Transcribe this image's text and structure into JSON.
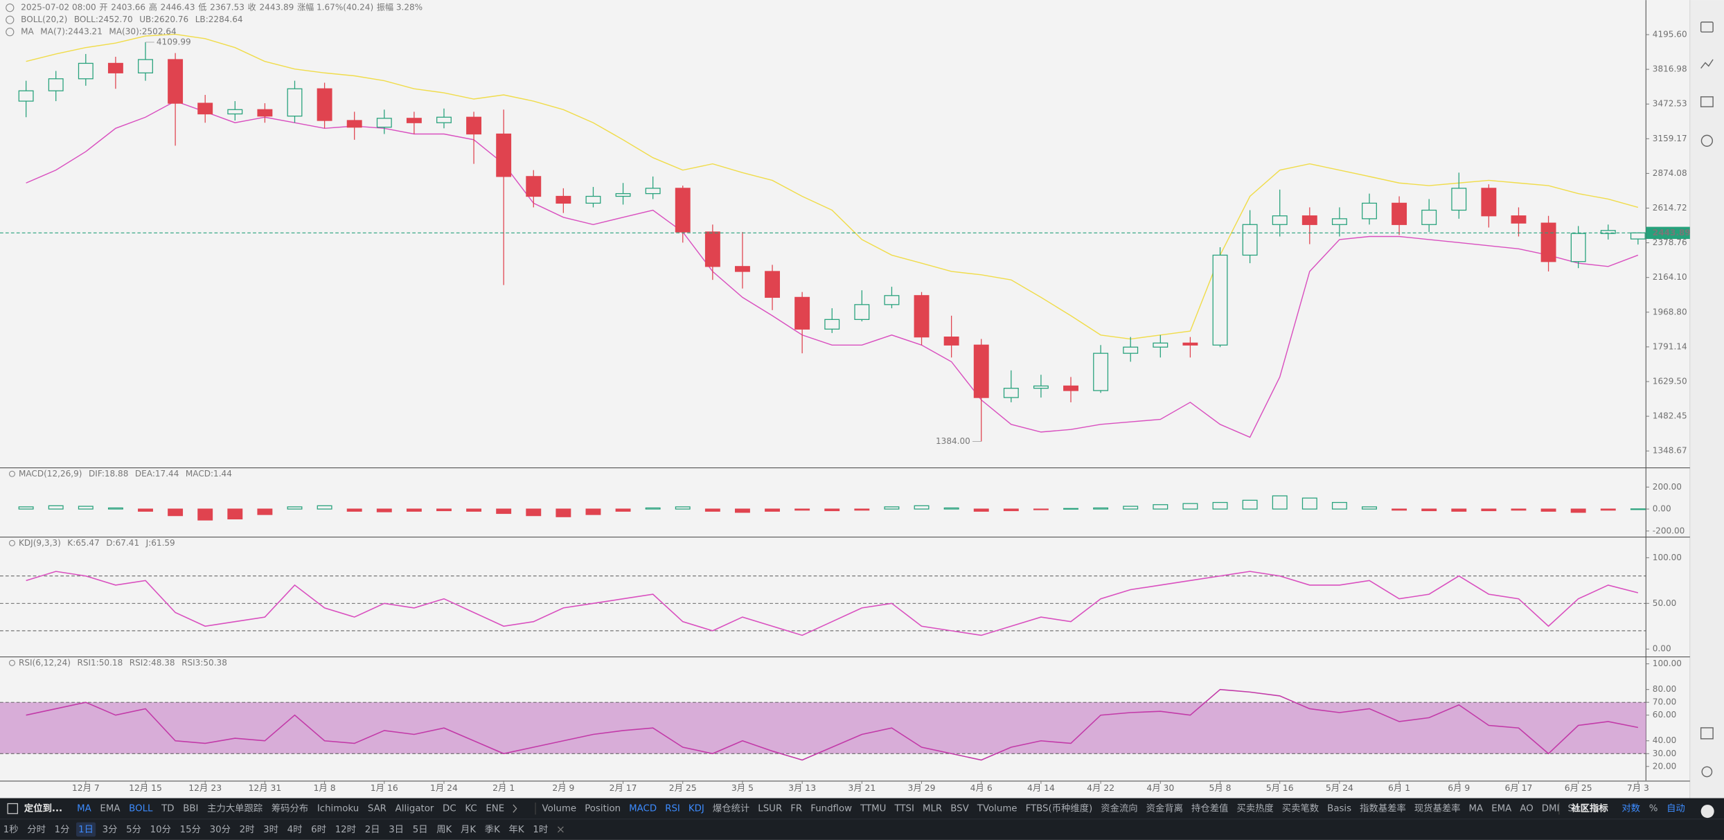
{
  "header": {
    "datetime": "2025-07-02 08:00",
    "open_label": "开",
    "high_label": "高",
    "low_label": "低",
    "close_label": "收",
    "change": "涨幅 1.67%(40.24)",
    "amplitude": "振幅 3.28%"
  },
  "overlay_legends": [
    {
      "title": "BOLL(20,2)",
      "items": [
        {
          "text": "BOLL:2452.70",
          "color": "#b8b8b8"
        },
        {
          "text": "UB:2620.76",
          "color": "#e6c700"
        },
        {
          "text": "LB:2284.64",
          "color": "#d94fbf"
        }
      ]
    },
    {
      "title": "MA",
      "items": [
        {
          "text": "MA(7):2443.21",
          "color": "#b8b8b8"
        },
        {
          "text": "MA(30):2502.64",
          "color": "#e6c700"
        }
      ]
    }
  ],
  "chart_data": [
    {
      "type": "candlestick",
      "log_scale": true,
      "ylim": [
        1290,
        4610
      ],
      "yticks": [
        {
          "value": 4195.6,
          "label": "4195.60"
        },
        3816.98,
        3472.53,
        3159.17,
        2874.08,
        2614.72,
        2378.76,
        {
          "value": 2164.1,
          "label": "2164.10"
        },
        {
          "value": 1968.8,
          "label": "1968.80"
        },
        1791.14,
        {
          "value": 1629.5,
          "label": "1629.50"
        },
        1482.45,
        1348.67
      ],
      "x_labels": [
        "12月 7",
        "12月 15",
        "12月 23",
        "12月 31",
        "1月 8",
        "1月 16",
        "1月 24",
        "2月 1",
        "2月 9",
        "2月 17",
        "2月 25",
        "3月 5",
        "3月 13",
        "3月 21",
        "3月 29",
        "4月 6",
        "4月 14",
        "4月 22",
        "4月 30",
        "5月 8",
        "5月 16",
        "5月 24",
        "6月 1",
        "6月 9",
        "6月 17",
        "6月 25",
        "7月 3"
      ],
      "up_color": "#26a17b",
      "down_color": "#e0434f",
      "open": [
        3500,
        3600,
        3720,
        3880,
        3780,
        3920,
        3480,
        3380,
        3420,
        3360,
        3620,
        3320,
        3260,
        3340,
        3300,
        3350,
        3200,
        2850,
        2700,
        2650,
        2700,
        2720,
        2760,
        2450,
        2230,
        2200,
        2050,
        1880,
        1930,
        2010,
        2060,
        1840,
        1800,
        1560,
        1600,
        1610,
        1590,
        1760,
        1790,
        1810,
        1800,
        2300,
        2500,
        2560,
        2500,
        2540,
        2650,
        2500,
        2600,
        2760,
        2560,
        2510,
        2260,
        2440,
        2403.66
      ],
      "high": [
        3700,
        3800,
        3980,
        3950,
        4109.99,
        3990,
        3560,
        3500,
        3480,
        3700,
        3680,
        3400,
        3420,
        3400,
        3430,
        3400,
        3420,
        2900,
        2760,
        2770,
        2800,
        2850,
        2780,
        2500,
        2450,
        2240,
        2080,
        1990,
        2090,
        2110,
        2080,
        1950,
        1830,
        1680,
        1660,
        1650,
        1800,
        1840,
        1850,
        1840,
        2350,
        2600,
        2750,
        2620,
        2620,
        2720,
        2700,
        2680,
        2880,
        2790,
        2620,
        2560,
        2490,
        2500,
        2446.43
      ],
      "low": [
        3350,
        3500,
        3650,
        3620,
        3700,
        3100,
        3300,
        3320,
        3300,
        3300,
        3250,
        3150,
        3200,
        3200,
        3250,
        2950,
        2120,
        2620,
        2580,
        2620,
        2640,
        2680,
        2380,
        2150,
        2100,
        1980,
        1760,
        1860,
        1920,
        1990,
        1800,
        1740,
        1384,
        1540,
        1560,
        1540,
        1580,
        1720,
        1740,
        1740,
        1790,
        2250,
        2420,
        2370,
        2420,
        2500,
        2430,
        2450,
        2540,
        2480,
        2420,
        2200,
        2220,
        2400,
        2367.53
      ],
      "close": [
        3600,
        3720,
        3880,
        3780,
        3920,
        3480,
        3380,
        3420,
        3360,
        3620,
        3320,
        3260,
        3340,
        3300,
        3350,
        3200,
        2850,
        2700,
        2650,
        2700,
        2720,
        2760,
        2450,
        2230,
        2200,
        2050,
        1880,
        1930,
        2010,
        2060,
        1840,
        1800,
        1560,
        1600,
        1610,
        1590,
        1760,
        1790,
        1810,
        1800,
        2300,
        2500,
        2560,
        2500,
        2540,
        2650,
        2500,
        2600,
        2760,
        2560,
        2510,
        2260,
        2440,
        2460,
        2443.89
      ],
      "high_label": "4109.99",
      "low_label": "1384.00",
      "boll_upper": {
        "color": "#f0dc4a",
        "values": [
          3900,
          3980,
          4050,
          4100,
          4180,
          4200,
          4150,
          4050,
          3900,
          3820,
          3780,
          3750,
          3700,
          3620,
          3580,
          3520,
          3560,
          3500,
          3420,
          3300,
          3150,
          3000,
          2900,
          2950,
          2880,
          2820,
          2700,
          2600,
          2400,
          2300,
          2250,
          2200,
          2180,
          2150,
          2050,
          1950,
          1850,
          1830,
          1850,
          1870,
          2300,
          2700,
          2900,
          2950,
          2900,
          2850,
          2800,
          2780,
          2800,
          2820,
          2800,
          2780,
          2720,
          2680,
          2620
        ]
      },
      "boll_lower": {
        "color": "#d94fbf",
        "values": [
          2800,
          2900,
          3050,
          3250,
          3350,
          3500,
          3400,
          3300,
          3350,
          3300,
          3250,
          3270,
          3250,
          3200,
          3200,
          3150,
          2950,
          2650,
          2550,
          2500,
          2550,
          2600,
          2450,
          2200,
          2050,
          1950,
          1850,
          1800,
          1800,
          1850,
          1800,
          1720,
          1550,
          1450,
          1420,
          1430,
          1450,
          1460,
          1470,
          1540,
          1450,
          1400,
          1650,
          2200,
          2400,
          2420,
          2420,
          2400,
          2380,
          2360,
          2340,
          2300,
          2250,
          2230,
          2300
        ]
      }
    },
    {
      "type": "bar",
      "title": "MACD(12,26,9)",
      "legend": [
        {
          "text": "DIF:18.88",
          "color": "#b8b8b8"
        },
        {
          "text": "DEA:17.44",
          "color": "#e6c700"
        },
        {
          "text": "MACD:1.44",
          "color": "#26a17b"
        }
      ],
      "ylim": [
        -250,
        370
      ],
      "yticks": [
        {
          "value": 200,
          "label": "200.00"
        },
        {
          "value": 0,
          "label": "0.00"
        },
        {
          "value": -200,
          "label": "-200.00"
        }
      ],
      "up_color": "#26a17b",
      "down_color": "#e0434f",
      "values": [
        20,
        30,
        25,
        10,
        -20,
        -60,
        -100,
        -90,
        -50,
        20,
        30,
        -20,
        -25,
        -20,
        -15,
        -20,
        -40,
        -60,
        -70,
        -50,
        -20,
        10,
        20,
        -20,
        -30,
        -20,
        -10,
        -15,
        -10,
        20,
        30,
        10,
        -20,
        -15,
        -5,
        5,
        10,
        25,
        40,
        50,
        60,
        80,
        120,
        100,
        60,
        20,
        -10,
        -15,
        -20,
        -15,
        -10,
        -20,
        -30,
        -10,
        1.44
      ]
    },
    {
      "type": "line",
      "title": "KDJ(9,3,3)",
      "legend": [
        {
          "text": "K:65.47",
          "color": "#b8b8b8"
        },
        {
          "text": "D:67.41",
          "color": "#e6c700"
        },
        {
          "text": "J:61.59",
          "color": "#d94fbf"
        }
      ],
      "ylim": [
        -8,
        122
      ],
      "yticks": [
        {
          "value": 100,
          "label": "100.00"
        },
        {
          "value": 50,
          "label": "50.00"
        },
        {
          "value": 0,
          "label": "0.00"
        }
      ],
      "levels": [
        80,
        50,
        20
      ],
      "color": "#d94fbf",
      "values": [
        75,
        85,
        80,
        70,
        75,
        40,
        25,
        30,
        35,
        70,
        45,
        35,
        50,
        45,
        55,
        40,
        25,
        30,
        45,
        50,
        55,
        60,
        30,
        20,
        35,
        25,
        15,
        30,
        45,
        50,
        25,
        20,
        15,
        25,
        35,
        30,
        55,
        65,
        70,
        75,
        80,
        85,
        80,
        70,
        70,
        75,
        55,
        60,
        80,
        60,
        55,
        25,
        55,
        70,
        61.59
      ]
    },
    {
      "type": "line",
      "title": "RSI(6,12,24)",
      "legend": [
        {
          "text": "RSI1:50.18",
          "color": "#b8b8b8"
        },
        {
          "text": "RSI2:48.38",
          "color": "#e6c700"
        },
        {
          "text": "RSI3:50.38",
          "color": "#d94fbf"
        }
      ],
      "ylim": [
        9,
        105
      ],
      "yticks": [
        {
          "value": 100,
          "label": "100.00"
        },
        {
          "value": 80,
          "label": "80.00"
        },
        {
          "value": 70,
          "label": "70.00"
        },
        {
          "value": 60,
          "label": "60.00"
        },
        {
          "value": 40,
          "label": "40.00"
        },
        {
          "value": 30,
          "label": "30.00"
        },
        {
          "value": 20,
          "label": "20.00"
        }
      ],
      "band": [
        30,
        70
      ],
      "band_color": "#cf95cf",
      "color": "#c23aa8",
      "values": [
        60,
        65,
        70,
        60,
        65,
        40,
        38,
        42,
        40,
        60,
        40,
        38,
        48,
        45,
        50,
        40,
        30,
        35,
        40,
        45,
        48,
        50,
        35,
        30,
        40,
        32,
        25,
        35,
        45,
        50,
        35,
        30,
        25,
        35,
        40,
        38,
        60,
        62,
        63,
        60,
        80,
        78,
        75,
        65,
        62,
        65,
        55,
        58,
        68,
        52,
        50,
        30,
        52,
        55,
        50.38
      ]
    }
  ],
  "toolbar": {
    "locate": "定位到...",
    "main_indicators": [
      {
        "text": "MA",
        "active": true
      },
      {
        "text": "EMA",
        "active": false
      },
      {
        "text": "BOLL",
        "active": true
      },
      {
        "text": "TD",
        "active": false
      },
      {
        "text": "BBI",
        "active": false
      },
      {
        "text": "主力大单跟踪",
        "active": false
      },
      {
        "text": "筹码分布",
        "active": false
      },
      {
        "text": "Ichimoku",
        "active": false
      },
      {
        "text": "SAR",
        "active": false
      },
      {
        "text": "Alligator",
        "active": false
      },
      {
        "text": "DC",
        "active": false
      },
      {
        "text": "KC",
        "active": false
      },
      {
        "text": "ENE",
        "active": false
      }
    ],
    "sub_indicators": [
      {
        "text": "Volume",
        "active": false
      },
      {
        "text": "Position",
        "active": false
      },
      {
        "text": "MACD",
        "active": true
      },
      {
        "text": "RSI",
        "active": true
      },
      {
        "text": "KDJ",
        "active": true
      },
      {
        "text": "爆仓统计",
        "active": false
      },
      {
        "text": "LSUR",
        "active": false
      },
      {
        "text": "FR",
        "active": false
      },
      {
        "text": "Fundflow",
        "active": false
      },
      {
        "text": "TTMU",
        "active": false
      },
      {
        "text": "TTSI",
        "active": false
      },
      {
        "text": "MLR",
        "active": false
      },
      {
        "text": "BSV",
        "active": false
      },
      {
        "text": "TVolume",
        "active": false
      },
      {
        "text": "FTBS(币种维度)",
        "active": false
      },
      {
        "text": "资金流向",
        "active": false
      },
      {
        "text": "资金背离",
        "active": false
      },
      {
        "text": "持仓差值",
        "active": false
      },
      {
        "text": "买卖热度",
        "active": false
      },
      {
        "text": "买卖笔数",
        "active": false
      },
      {
        "text": "Basis",
        "active": false
      },
      {
        "text": "指数基差率",
        "active": false
      },
      {
        "text": "现货基差率",
        "active": false
      },
      {
        "text": "MA",
        "active": false
      },
      {
        "text": "EMA",
        "active": false
      },
      {
        "text": "AO",
        "active": false
      },
      {
        "text": "DMI",
        "active": false
      },
      {
        "text": "SAR",
        "active": false
      }
    ],
    "community": "社区指标",
    "options": [
      {
        "text": "对数",
        "active": true
      },
      {
        "text": "%",
        "active": false
      },
      {
        "text": "自动",
        "active": true
      }
    ],
    "timeframes": [
      {
        "text": "1秒",
        "active": false
      },
      {
        "text": "分时",
        "active": false
      },
      {
        "text": "1分",
        "active": false
      },
      {
        "text": "1日",
        "active": true
      },
      {
        "text": "3分",
        "active": false
      },
      {
        "text": "5分",
        "active": false
      },
      {
        "text": "10分",
        "active": false
      },
      {
        "text": "15分",
        "active": false
      },
      {
        "text": "30分",
        "active": false
      },
      {
        "text": "2时",
        "active": false
      },
      {
        "text": "3时",
        "active": false
      },
      {
        "text": "4时",
        "active": false
      },
      {
        "text": "6时",
        "active": false
      },
      {
        "text": "12时",
        "active": false
      },
      {
        "text": "2日",
        "active": false
      },
      {
        "text": "3日",
        "active": false
      },
      {
        "text": "5日",
        "active": false
      },
      {
        "text": "周K",
        "active": false
      },
      {
        "text": "月K",
        "active": false
      },
      {
        "text": "季K",
        "active": false
      },
      {
        "text": "年K",
        "active": false
      },
      {
        "text": "1时",
        "active": false
      }
    ]
  }
}
